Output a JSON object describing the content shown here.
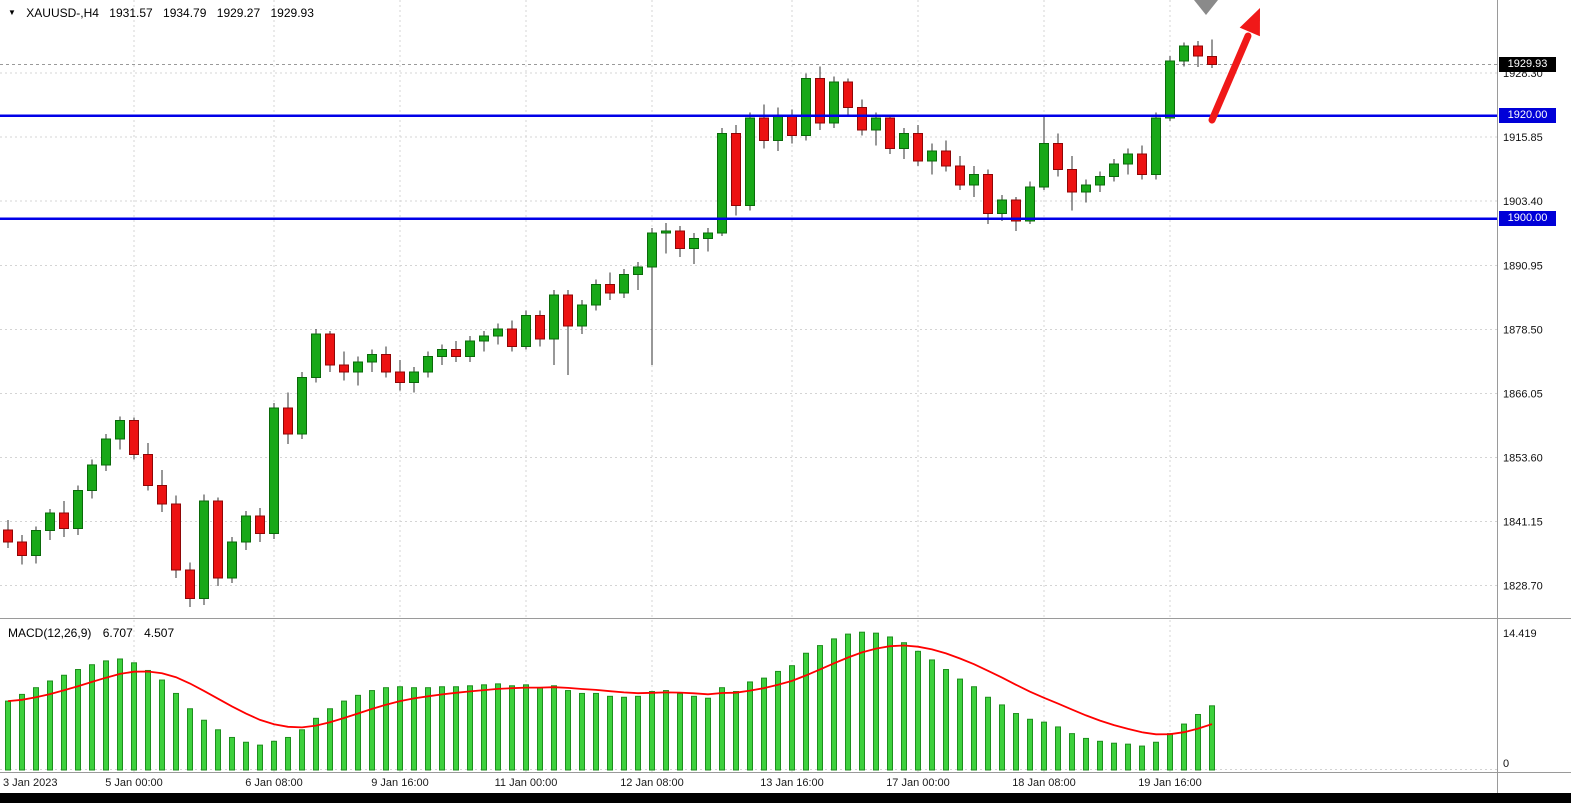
{
  "header": {
    "title": "XAUUSD-,H4",
    "ohlc": {
      "open": "1931.57",
      "high": "1934.79",
      "low": "1929.27",
      "close": "1929.93"
    }
  },
  "chart_data": {
    "type": "candlestick",
    "symbol": "XAUUSD-",
    "timeframe": "H4",
    "price_axis": {
      "current_price": 1929.93,
      "current_label": "1929.93",
      "ticks": [
        {
          "price": 1928.3,
          "label": "1928.30"
        },
        {
          "price": 1915.85,
          "label": "1915.85"
        },
        {
          "price": 1903.4,
          "label": "1903.40"
        },
        {
          "price": 1890.95,
          "label": "1890.95"
        },
        {
          "price": 1878.5,
          "label": "1878.50"
        },
        {
          "price": 1866.05,
          "label": "1866.05"
        },
        {
          "price": 1853.6,
          "label": "1853.60"
        },
        {
          "price": 1841.15,
          "label": "1841.15"
        },
        {
          "price": 1828.7,
          "label": "1828.70"
        }
      ],
      "levels": [
        {
          "price": 1920.0,
          "label": "1920.00"
        },
        {
          "price": 1900.0,
          "label": "1900.00"
        }
      ]
    },
    "time_axis": {
      "ticks": [
        {
          "label": "3 Jan 2023",
          "index": 0,
          "grid": false
        },
        {
          "label": "5 Jan 00:00",
          "index": 9,
          "grid": true
        },
        {
          "label": "6 Jan 08:00",
          "index": 19,
          "grid": true
        },
        {
          "label": "9 Jan 16:00",
          "index": 28,
          "grid": true
        },
        {
          "label": "11 Jan 00:00",
          "index": 37,
          "grid": true
        },
        {
          "label": "12 Jan 08:00",
          "index": 46,
          "grid": true
        },
        {
          "label": "13 Jan 16:00",
          "index": 56,
          "grid": true
        },
        {
          "label": "17 Jan 00:00",
          "index": 65,
          "grid": true
        },
        {
          "label": "18 Jan 08:00",
          "index": 74,
          "grid": true
        },
        {
          "label": "19 Jan 16:00",
          "index": 83,
          "grid": true
        }
      ]
    },
    "candles": [
      [
        1839.5,
        1841.5,
        1836.0,
        1837.2
      ],
      [
        1837.2,
        1838.6,
        1832.8,
        1834.6
      ],
      [
        1834.6,
        1840.2,
        1833.0,
        1839.4
      ],
      [
        1839.4,
        1843.6,
        1837.6,
        1842.8
      ],
      [
        1842.8,
        1845.2,
        1838.2,
        1839.8
      ],
      [
        1839.8,
        1848.2,
        1838.6,
        1847.2
      ],
      [
        1847.2,
        1853.2,
        1845.6,
        1852.2
      ],
      [
        1852.2,
        1858.2,
        1851.0,
        1857.2
      ],
      [
        1857.2,
        1861.6,
        1855.2,
        1860.8
      ],
      [
        1860.8,
        1861.4,
        1853.2,
        1854.2
      ],
      [
        1854.2,
        1856.4,
        1847.2,
        1848.2
      ],
      [
        1848.2,
        1851.2,
        1843.0,
        1844.6
      ],
      [
        1844.6,
        1846.2,
        1830.2,
        1831.8
      ],
      [
        1831.8,
        1833.2,
        1824.6,
        1826.2
      ],
      [
        1826.2,
        1846.4,
        1825.0,
        1845.2
      ],
      [
        1845.2,
        1845.8,
        1828.6,
        1830.2
      ],
      [
        1830.2,
        1838.2,
        1829.2,
        1837.2
      ],
      [
        1837.2,
        1843.2,
        1835.6,
        1842.2
      ],
      [
        1842.2,
        1843.8,
        1837.2,
        1838.8
      ],
      [
        1838.8,
        1864.2,
        1837.8,
        1863.2
      ],
      [
        1863.2,
        1866.2,
        1856.2,
        1858.2
      ],
      [
        1858.2,
        1870.2,
        1857.2,
        1869.2
      ],
      [
        1869.2,
        1878.6,
        1868.2,
        1877.6
      ],
      [
        1877.6,
        1878.2,
        1870.2,
        1871.6
      ],
      [
        1871.6,
        1874.2,
        1868.6,
        1870.2
      ],
      [
        1870.2,
        1873.2,
        1867.6,
        1872.2
      ],
      [
        1872.2,
        1874.6,
        1870.2,
        1873.6
      ],
      [
        1873.6,
        1875.2,
        1869.2,
        1870.2
      ],
      [
        1870.2,
        1872.6,
        1866.6,
        1868.2
      ],
      [
        1868.2,
        1871.2,
        1866.2,
        1870.2
      ],
      [
        1870.2,
        1874.2,
        1869.2,
        1873.2
      ],
      [
        1873.2,
        1875.6,
        1871.6,
        1874.6
      ],
      [
        1874.6,
        1876.2,
        1872.2,
        1873.2
      ],
      [
        1873.2,
        1877.2,
        1872.2,
        1876.2
      ],
      [
        1876.2,
        1878.2,
        1874.2,
        1877.2
      ],
      [
        1877.2,
        1879.6,
        1875.6,
        1878.6
      ],
      [
        1878.6,
        1880.2,
        1874.2,
        1875.2
      ],
      [
        1875.2,
        1882.2,
        1874.6,
        1881.2
      ],
      [
        1881.2,
        1882.2,
        1875.2,
        1876.6
      ],
      [
        1876.6,
        1886.2,
        1871.6,
        1885.2
      ],
      [
        1885.2,
        1886.2,
        1869.6,
        1879.2
      ],
      [
        1879.2,
        1884.2,
        1877.6,
        1883.2
      ],
      [
        1883.2,
        1888.2,
        1882.2,
        1887.2
      ],
      [
        1887.2,
        1889.6,
        1884.2,
        1885.6
      ],
      [
        1885.6,
        1890.2,
        1884.6,
        1889.2
      ],
      [
        1889.2,
        1891.6,
        1886.2,
        1890.6
      ],
      [
        1890.6,
        1898.2,
        1871.6,
        1897.2
      ],
      [
        1897.2,
        1899.2,
        1893.2,
        1897.6
      ],
      [
        1897.6,
        1898.6,
        1892.6,
        1894.2
      ],
      [
        1894.2,
        1897.2,
        1891.2,
        1896.2
      ],
      [
        1896.2,
        1898.2,
        1893.6,
        1897.2
      ],
      [
        1897.2,
        1917.6,
        1896.6,
        1916.6
      ],
      [
        1916.6,
        1918.2,
        1900.6,
        1902.6
      ],
      [
        1902.6,
        1920.6,
        1901.6,
        1919.6
      ],
      [
        1919.6,
        1922.2,
        1913.6,
        1915.2
      ],
      [
        1915.2,
        1921.6,
        1913.2,
        1920.2
      ],
      [
        1920.2,
        1921.2,
        1914.6,
        1916.2
      ],
      [
        1916.2,
        1928.2,
        1915.2,
        1927.2
      ],
      [
        1927.2,
        1929.6,
        1917.2,
        1918.6
      ],
      [
        1918.6,
        1927.6,
        1917.6,
        1926.6
      ],
      [
        1926.6,
        1927.2,
        1920.2,
        1921.6
      ],
      [
        1921.6,
        1923.2,
        1916.2,
        1917.2
      ],
      [
        1917.2,
        1920.6,
        1914.2,
        1919.6
      ],
      [
        1919.6,
        1920.2,
        1912.6,
        1913.6
      ],
      [
        1913.6,
        1917.6,
        1911.6,
        1916.6
      ],
      [
        1916.6,
        1918.2,
        1910.2,
        1911.2
      ],
      [
        1911.2,
        1914.6,
        1908.6,
        1913.2
      ],
      [
        1913.2,
        1915.2,
        1909.2,
        1910.2
      ],
      [
        1910.2,
        1912.2,
        1905.6,
        1906.6
      ],
      [
        1906.6,
        1910.2,
        1904.2,
        1908.6
      ],
      [
        1908.6,
        1909.6,
        1899.0,
        1901.0
      ],
      [
        1901.0,
        1904.6,
        1899.6,
        1903.6
      ],
      [
        1903.6,
        1904.2,
        1897.6,
        1899.6
      ],
      [
        1899.6,
        1907.2,
        1899.0,
        1906.2
      ],
      [
        1906.2,
        1920.2,
        1905.6,
        1914.6
      ],
      [
        1914.6,
        1916.6,
        1908.2,
        1909.6
      ],
      [
        1909.6,
        1912.2,
        1901.6,
        1905.2
      ],
      [
        1905.2,
        1907.6,
        1903.2,
        1906.6
      ],
      [
        1906.6,
        1909.2,
        1905.2,
        1908.2
      ],
      [
        1908.2,
        1911.6,
        1907.2,
        1910.6
      ],
      [
        1910.6,
        1913.6,
        1908.6,
        1912.6
      ],
      [
        1912.6,
        1914.2,
        1907.6,
        1908.6
      ],
      [
        1908.6,
        1920.6,
        1907.6,
        1919.6
      ],
      [
        1919.6,
        1931.6,
        1919.0,
        1930.6
      ],
      [
        1930.6,
        1934.2,
        1929.6,
        1933.6
      ],
      [
        1933.6,
        1934.5,
        1929.5,
        1931.6
      ],
      [
        1931.57,
        1934.79,
        1929.27,
        1929.93
      ]
    ],
    "macd": {
      "label": "MACD(12,26,9)",
      "value_main": "6.707",
      "value_signal": "4.507",
      "axis_max": 14.419,
      "axis_max_label": "14.419",
      "axis_min_label": "0",
      "signal_period": 9,
      "histogram": [
        7.2,
        7.9,
        8.6,
        9.3,
        9.9,
        10.5,
        11.0,
        11.4,
        11.6,
        11.2,
        10.4,
        9.4,
        8.0,
        6.4,
        5.2,
        4.2,
        3.4,
        2.9,
        2.6,
        3.0,
        3.4,
        4.2,
        5.4,
        6.4,
        7.2,
        7.8,
        8.3,
        8.6,
        8.7,
        8.6,
        8.6,
        8.7,
        8.7,
        8.8,
        8.9,
        9.0,
        8.8,
        8.9,
        8.6,
        8.8,
        8.3,
        8.0,
        8.0,
        7.7,
        7.6,
        7.7,
        8.2,
        8.3,
        8.0,
        7.7,
        7.5,
        8.6,
        8.2,
        9.2,
        9.6,
        10.3,
        10.9,
        12.2,
        13.0,
        13.7,
        14.2,
        14.4,
        14.3,
        13.9,
        13.3,
        12.4,
        11.5,
        10.5,
        9.5,
        8.7,
        7.6,
        6.8,
        5.9,
        5.3,
        5.0,
        4.5,
        3.8,
        3.3,
        3.0,
        2.8,
        2.7,
        2.5,
        2.9,
        3.8,
        4.8,
        5.8,
        6.707
      ]
    },
    "annotation_arrow": {
      "type": "up-arrow",
      "meaning": "bullish-breakout-annotation"
    },
    "colors": {
      "bull": "#18a818",
      "bull_border": "#0a6a0a",
      "bear": "#ec1212",
      "bear_border": "#8f0606",
      "wick": "#303030",
      "macd_bar": "#3dd13d",
      "macd_bar_border": "#1e8e1e",
      "macd_signal": "#ff0000",
      "level_line": "#0000e8",
      "arrow": "#f01818",
      "current_badge_bg": "#000000",
      "level_badge_bg": "#0000d8"
    }
  }
}
